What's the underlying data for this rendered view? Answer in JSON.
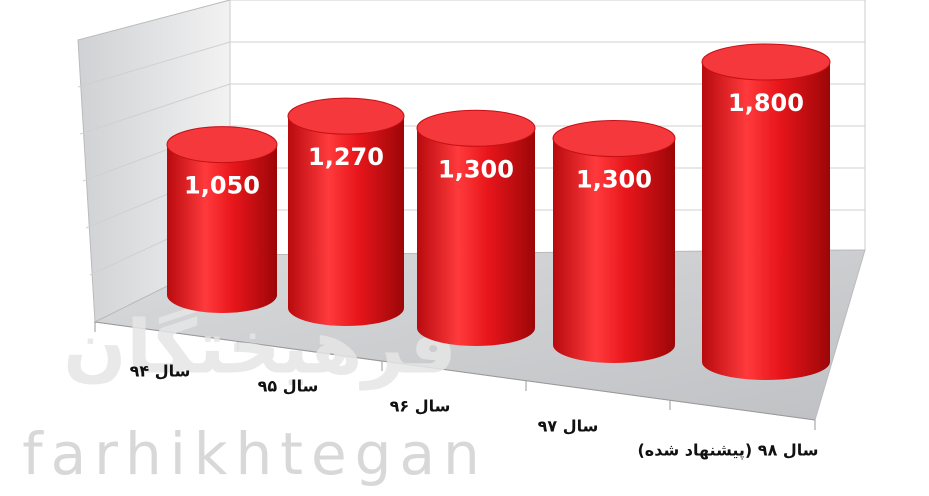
{
  "chart_data": {
    "type": "cylinder",
    "categories": [
      "سال ۹۴",
      "سال ۹۵",
      "سال ۹۶",
      "سال ۹۷",
      "سال ۹۸ (پیشنهاد شده)"
    ],
    "values": [
      1050,
      1270,
      1300,
      1300,
      1800
    ],
    "value_labels": [
      "1,050",
      "1,270",
      "1,300",
      "1,300",
      "1,800"
    ],
    "color": "#e8161b"
  },
  "watermark": {
    "title": "فرهیختگان",
    "subtitle": "farhikhtegan"
  }
}
